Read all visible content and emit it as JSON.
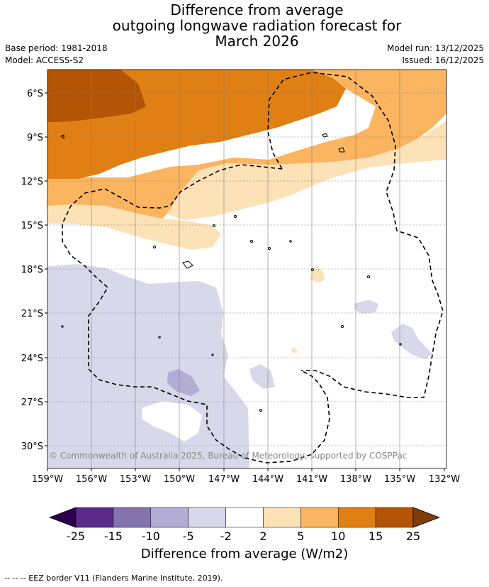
{
  "header": {
    "title_lines": [
      "Difference from average",
      "outgoing longwave radiation forecast for",
      "March 2026"
    ],
    "base_period": "Base period: 1981-2018",
    "model": "Model: ACCESS-S2",
    "model_run": "Model run: 13/12/2025",
    "issued": "Issued: 16/12/2025"
  },
  "map": {
    "lat_labels": [
      "6°S",
      "9°S",
      "12°S",
      "15°S",
      "18°S",
      "21°S",
      "24°S",
      "27°S",
      "30°S"
    ],
    "lon_labels": [
      "159°W",
      "156°W",
      "153°W",
      "150°W",
      "147°W",
      "144°W",
      "141°W",
      "138°W",
      "135°W",
      "132°W"
    ],
    "copyright": "© Commonwealth of Australia 2025, Bureau of Meteorology, supported by COSPPac"
  },
  "colorbar": {
    "ticks": [
      "-25",
      "-15",
      "-10",
      "-5",
      "-2",
      "2",
      "5",
      "10",
      "15",
      "25"
    ],
    "colors": [
      "#5c2a8a",
      "#8474ad",
      "#b3acd4",
      "#d8d8ea",
      "#ffffff",
      "#fde1b7",
      "#fbb45f",
      "#e07f14",
      "#b45406"
    ],
    "end_low": "#2d004b",
    "end_high": "#7f3b08",
    "title": "Difference from average (W/m2)"
  },
  "footer": {
    "legend_text": "-- -- -- EEZ border V11 (Flanders Marine Institute, 2019)."
  }
}
